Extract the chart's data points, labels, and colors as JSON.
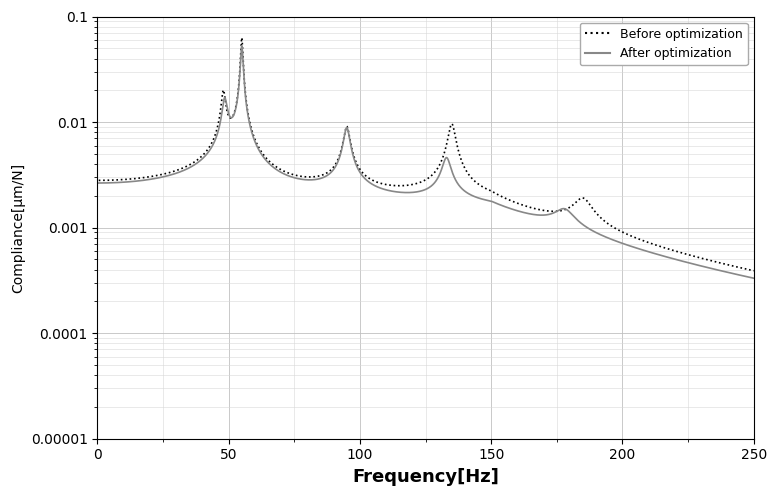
{
  "title": "",
  "xlabel": "Frequency[Hz]",
  "ylabel": "Compliance[μm/N]",
  "xlim": [
    0,
    250
  ],
  "ylim": [
    1e-05,
    0.1
  ],
  "legend_labels": [
    "Before optimization",
    "After optimization"
  ],
  "background_color": "#ffffff",
  "line_before_color": "#000000",
  "line_after_color": "#888888",
  "line_before_style": "dotted",
  "line_after_style": "solid",
  "line_width": 1.2,
  "xlabel_fontsize": 13,
  "ylabel_fontsize": 10,
  "tick_fontsize": 10,
  "ytick_labels": [
    "0.00001",
    "0.0001",
    "0.001",
    "0.01",
    "0.1"
  ],
  "ytick_values": [
    1e-05,
    0.0001,
    0.001,
    0.01,
    0.1
  ],
  "xtick_values": [
    0,
    50,
    100,
    150,
    200,
    250
  ]
}
